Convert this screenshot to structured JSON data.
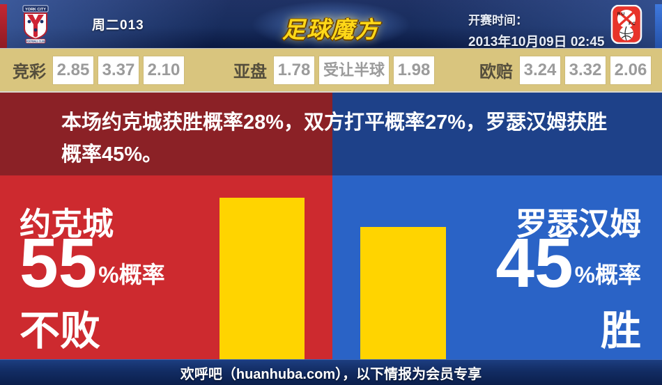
{
  "header": {
    "match_code": "周二013",
    "logo_text": "足球魔方",
    "kickoff_label": "开赛时间：",
    "kickoff_time": "2013年10月09日 02:45",
    "home_crest_text": "YORK CITY",
    "home_crest_bottom_text": "FOOTBALL CLUB",
    "away_crest_letters_row1": "R U",
    "away_crest_letters_row2": "F C"
  },
  "odds_bar": {
    "groups": [
      {
        "label": "竞彩",
        "values": [
          "2.85",
          "3.37",
          "2.10"
        ]
      },
      {
        "label": "亚盘",
        "values": [
          "1.78",
          "受让半球",
          "1.98"
        ]
      },
      {
        "label": "欧赔",
        "values": [
          "3.24",
          "3.32",
          "2.06"
        ]
      }
    ]
  },
  "summary": {
    "text": "本场约克城获胜概率28%，双方打平概率27%，罗瑟汉姆获胜概率45%。"
  },
  "panels": {
    "left": {
      "team": "约克城",
      "percent": "55",
      "percent_suffix": "%概率",
      "outcome": "不败"
    },
    "right": {
      "team": "罗瑟汉姆",
      "percent": "45",
      "percent_suffix": "%概率",
      "outcome": "胜"
    }
  },
  "footer": {
    "text": "欢呼吧（huanhuba.com），以下情报为会员专享"
  },
  "colors": {
    "header_navy": "#122b66",
    "odds_bg": "#d9c57e",
    "summary_red": "#8b2126",
    "summary_blue": "#1e4189",
    "panel_red": "#cd2a2f",
    "panel_blue": "#2a63c6",
    "bar_yellow": "#ffd400",
    "footer_navy": "#122c63"
  },
  "chart_data": {
    "type": "bar",
    "categories": [
      "约克城 不败",
      "罗瑟汉姆 胜"
    ],
    "values": [
      55,
      45
    ],
    "unit": "%",
    "bar_color": "#ffd400",
    "probabilities_pct": {
      "home_win": 28,
      "draw": 27,
      "away_win": 45
    }
  }
}
